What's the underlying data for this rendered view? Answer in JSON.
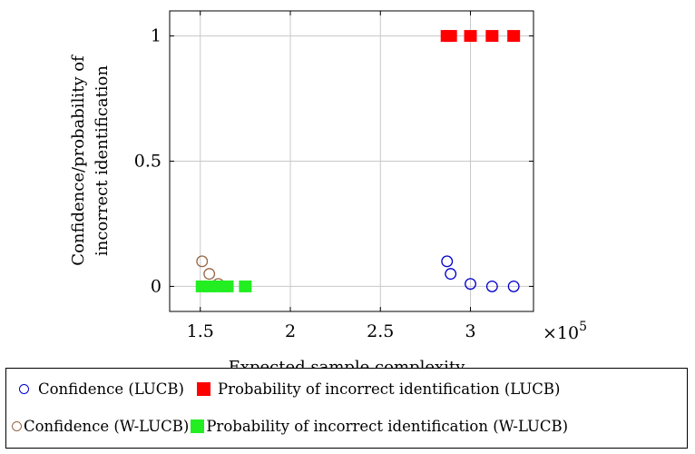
{
  "chart_data": {
    "type": "scatter",
    "title": "",
    "xlabel": "Expected sample complexity",
    "ylabel_lines": [
      "Confidence/probability of",
      "incorrect identification"
    ],
    "x_multiplier_label": "×10",
    "x_multiplier_exponent": "5",
    "xlim": [
      1.33,
      3.35
    ],
    "ylim": [
      -0.1,
      1.1
    ],
    "x_ticks": [
      1.5,
      2,
      2.5,
      3
    ],
    "x_tick_labels": [
      "1.5",
      "2",
      "2.5",
      "3"
    ],
    "y_ticks": [
      0,
      0.5,
      1
    ],
    "y_tick_labels": [
      "0",
      "0.5",
      "1"
    ],
    "grid": true,
    "legend_position": "bottom",
    "series": [
      {
        "name": "Confidence (LUCB)",
        "marker": "circle",
        "color": "#0000cc",
        "x": [
          2.87,
          2.89,
          3.0,
          3.12,
          3.24
        ],
        "y": [
          0.1,
          0.05,
          0.01,
          0.0,
          0.0
        ]
      },
      {
        "name": "Probability of incorrect identification (LUCB)",
        "marker": "square",
        "color": "#ff0000",
        "x": [
          2.87,
          2.89,
          3.0,
          3.12,
          3.24
        ],
        "y": [
          1,
          1,
          1,
          1,
          1
        ]
      },
      {
        "name": "Confidence (W-LUCB)",
        "marker": "circle",
        "color": "#996644",
        "x": [
          1.51,
          1.55,
          1.6,
          1.65,
          1.75
        ],
        "y": [
          0.1,
          0.05,
          0.01,
          0.0,
          0.0
        ]
      },
      {
        "name": "Probability of incorrect identification (W-LUCB)",
        "marker": "square",
        "color": "#22ee22",
        "x": [
          1.51,
          1.55,
          1.6,
          1.65,
          1.75
        ],
        "y": [
          0,
          0,
          0,
          0,
          0
        ]
      }
    ]
  }
}
